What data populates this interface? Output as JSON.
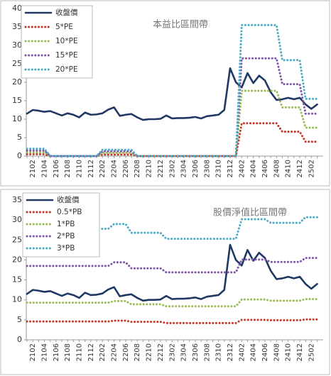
{
  "chart_data": [
    {
      "type": "line",
      "annotation": "本益比區間帶",
      "categories": [
        null,
        "2102",
        null,
        "2104",
        null,
        "2106",
        null,
        "2108",
        null,
        "2110",
        null,
        "2112",
        null,
        "2202",
        null,
        "2204",
        null,
        "2206",
        null,
        "2208",
        null,
        "2210",
        null,
        "2212",
        null,
        "2302",
        null,
        "2304",
        null,
        "2306",
        null,
        "2308",
        null,
        "2310",
        null,
        "2312",
        null,
        "2402",
        null,
        "2404",
        null,
        "2406",
        null,
        "2408",
        null,
        "2410",
        null,
        "2412",
        null,
        "2502",
        null
      ],
      "ylim": [
        0,
        40
      ],
      "yticks": [
        0,
        5,
        10,
        15,
        20,
        25,
        30,
        35,
        40
      ],
      "series": [
        {
          "name": "收盤價",
          "color": "#1f3864",
          "values": [
            11.5,
            12.5,
            12.3,
            12.0,
            12.2,
            11.6,
            11.0,
            11.6,
            11.2,
            10.5,
            11.8,
            11.2,
            11.3,
            11.6,
            12.6,
            13.2,
            10.9,
            11.2,
            11.4,
            10.5,
            9.8,
            10.0,
            10.0,
            10.1,
            11.0,
            10.2,
            10.3,
            10.3,
            10.4,
            10.6,
            10.2,
            10.8,
            11.0,
            11.2,
            12.5,
            23.8,
            20.0,
            18.6,
            22.5,
            19.8,
            21.8,
            20.5,
            17.3,
            15.2,
            15.4,
            15.8,
            15.4,
            15.8,
            14.0,
            12.8,
            14.0
          ]
        },
        {
          "name": "5*PE",
          "color": "#c0392b",
          "values": [
            0.5,
            0.5,
            0.5,
            0.5,
            0,
            0,
            0,
            0,
            0,
            0,
            0,
            0,
            0,
            0.4,
            0.4,
            0.4,
            0.4,
            0.4,
            0.4,
            0,
            0,
            0,
            0,
            0,
            0,
            0,
            0,
            0,
            0,
            0,
            0,
            0,
            0,
            0,
            0,
            0,
            0,
            8.9,
            8.9,
            8.9,
            8.9,
            8.9,
            8.9,
            8.9,
            6.6,
            6.6,
            6.6,
            6.6,
            3.9,
            3.9,
            3.9
          ]
        },
        {
          "name": "10*PE",
          "color": "#9bbb59",
          "values": [
            1,
            1,
            1,
            1,
            0,
            0,
            0,
            0,
            0,
            0,
            0,
            0,
            0,
            0.9,
            0.9,
            0.9,
            0.9,
            0.9,
            0.9,
            0,
            0,
            0,
            0,
            0,
            0,
            0,
            0,
            0,
            0,
            0,
            0,
            0,
            0,
            0,
            0,
            0,
            0,
            17.7,
            17.7,
            17.7,
            17.7,
            17.7,
            17.7,
            17.7,
            13.2,
            13.2,
            13.2,
            13.2,
            7.7,
            7.7,
            7.7
          ]
        },
        {
          "name": "15*PE",
          "color": "#7e57a8",
          "values": [
            1.5,
            1.5,
            1.5,
            1.5,
            0,
            0,
            0,
            0,
            0,
            0,
            0,
            0,
            0,
            1.3,
            1.3,
            1.3,
            1.3,
            1.3,
            1.3,
            0,
            0,
            0,
            0,
            0,
            0,
            0,
            0,
            0,
            0,
            0,
            0,
            0,
            0,
            0,
            0,
            0,
            0,
            26.5,
            26.5,
            26.5,
            26.5,
            26.5,
            26.5,
            26.5,
            19.5,
            19.5,
            19.5,
            19.5,
            11.5,
            11.5,
            11.5
          ]
        },
        {
          "name": "20*PE",
          "color": "#4bacc6",
          "values": [
            2,
            2,
            2,
            2,
            0,
            0,
            0,
            0,
            0,
            0,
            0,
            0,
            0,
            1.7,
            1.7,
            1.7,
            1.7,
            1.7,
            1.7,
            0,
            0,
            0,
            0,
            0,
            0,
            0,
            0,
            0,
            0,
            0,
            0,
            0,
            0,
            0,
            0,
            0,
            0,
            35.5,
            35.5,
            35.5,
            35.5,
            35.5,
            35.5,
            35.5,
            26,
            26,
            26,
            26,
            15.5,
            15.5,
            15.5
          ]
        }
      ]
    },
    {
      "type": "line",
      "annotation": "股價淨值比區間帶",
      "categories": [
        null,
        "2102",
        null,
        "2104",
        null,
        "2106",
        null,
        "2108",
        null,
        "2110",
        null,
        "2112",
        null,
        "2202",
        null,
        "2204",
        null,
        "2206",
        null,
        "2208",
        null,
        "2210",
        null,
        "2212",
        null,
        "2302",
        null,
        "2304",
        null,
        "2306",
        null,
        "2308",
        null,
        "2310",
        null,
        "2312",
        null,
        "2402",
        null,
        "2404",
        null,
        "2406",
        null,
        "2408",
        null,
        "2410",
        null,
        "2412",
        null,
        "2502",
        null
      ],
      "ylim": [
        0,
        35
      ],
      "yticks": [
        0,
        5,
        10,
        15,
        20,
        25,
        30,
        35
      ],
      "series": [
        {
          "name": "收盤價",
          "color": "#1f3864",
          "values": [
            11.5,
            12.5,
            12.3,
            12.0,
            12.2,
            11.6,
            11.0,
            11.6,
            11.2,
            10.5,
            11.8,
            11.2,
            11.3,
            11.6,
            12.6,
            13.2,
            10.9,
            11.2,
            11.4,
            10.5,
            9.8,
            10.0,
            10.0,
            10.1,
            11.0,
            10.2,
            10.3,
            10.3,
            10.4,
            10.6,
            10.2,
            10.8,
            11.0,
            11.2,
            12.5,
            23.8,
            20.0,
            18.6,
            22.5,
            19.8,
            21.8,
            20.5,
            17.3,
            15.2,
            15.4,
            15.8,
            15.4,
            15.8,
            14.0,
            12.8,
            14.0
          ]
        },
        {
          "name": "0.5*PB",
          "color": "#c0392b",
          "values": [
            4.6,
            4.6,
            4.6,
            4.6,
            4.6,
            4.6,
            4.6,
            4.6,
            4.6,
            4.6,
            4.6,
            4.6,
            4.6,
            4.6,
            4.6,
            4.8,
            4.8,
            4.8,
            4.5,
            4.5,
            4.5,
            4.5,
            4.5,
            4.5,
            4.2,
            4.2,
            4.2,
            4.2,
            4.2,
            4.2,
            4.2,
            4.2,
            4.2,
            4.2,
            4.2,
            4.2,
            4.2,
            5.0,
            5.0,
            5.0,
            5.0,
            5.0,
            4.9,
            4.9,
            4.9,
            4.9,
            4.9,
            4.9,
            5.1,
            5.1,
            5.1
          ]
        },
        {
          "name": "1*PB",
          "color": "#9bbb59",
          "values": [
            9.3,
            9.3,
            9.3,
            9.3,
            9.3,
            9.3,
            9.3,
            9.3,
            9.3,
            9.3,
            9.3,
            9.3,
            9.3,
            9.3,
            9.3,
            9.7,
            9.7,
            9.7,
            8.9,
            8.9,
            8.9,
            8.9,
            8.9,
            8.9,
            8.4,
            8.4,
            8.4,
            8.4,
            8.4,
            8.4,
            8.4,
            8.4,
            8.4,
            8.4,
            8.4,
            8.4,
            8.4,
            10.1,
            10.1,
            10.1,
            10.1,
            10.1,
            9.8,
            9.8,
            9.8,
            9.8,
            9.8,
            9.8,
            10.2,
            10.2,
            10.2
          ]
        },
        {
          "name": "2*PB",
          "color": "#7e57a8",
          "values": [
            18.5,
            18.5,
            18.5,
            18.5,
            18.5,
            18.5,
            18.5,
            18.5,
            18.5,
            18.5,
            18.5,
            18.5,
            18.5,
            18.5,
            18.5,
            19.4,
            19.4,
            19.4,
            17.9,
            17.9,
            17.9,
            17.9,
            17.9,
            17.9,
            16.9,
            16.9,
            16.9,
            16.9,
            16.9,
            16.9,
            16.9,
            16.9,
            16.9,
            16.9,
            16.9,
            16.9,
            16.9,
            20.1,
            20.1,
            20.1,
            20.1,
            20.1,
            19.5,
            19.5,
            19.5,
            19.5,
            19.5,
            19.5,
            20.5,
            20.5,
            20.5
          ]
        },
        {
          "name": "3*PB",
          "color": "#4bacc6",
          "values": [
            27.8,
            27.8,
            27.8,
            27.8,
            27.8,
            27.8,
            27.8,
            27.8,
            27.8,
            27.8,
            27.8,
            27.8,
            27.8,
            27.8,
            27.8,
            29.0,
            29.0,
            29.0,
            26.8,
            26.8,
            26.8,
            26.8,
            26.8,
            26.8,
            25.3,
            25.3,
            25.3,
            25.3,
            25.3,
            25.3,
            25.3,
            25.3,
            25.3,
            25.3,
            25.3,
            25.3,
            25.3,
            30.2,
            30.2,
            30.2,
            30.2,
            30.2,
            29.3,
            29.3,
            29.3,
            29.3,
            29.3,
            29.3,
            30.7,
            30.7,
            30.7
          ]
        }
      ]
    }
  ]
}
